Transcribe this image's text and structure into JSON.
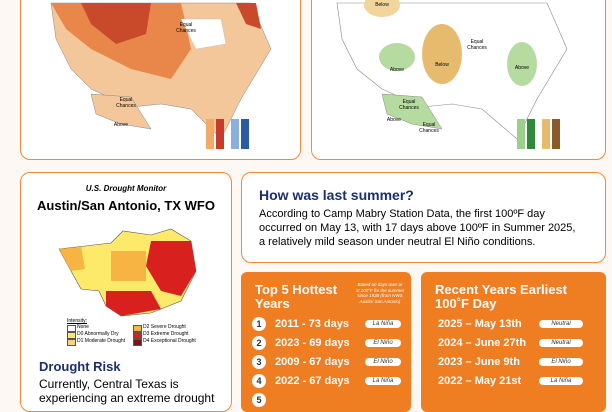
{
  "maps": [
    {
      "labels": [
        "Equal Chances",
        "Equal Chances",
        "Above"
      ]
    },
    {
      "labels": [
        "Below",
        "Equal Chances",
        "Below",
        "Above",
        "Above",
        "Equal Chances",
        "Above",
        "Equal Chances"
      ]
    }
  ],
  "drought": {
    "source": "U.S. Drought Monitor",
    "office": "Austin/San Antonio, TX WFO",
    "legend_title": "Intensity:",
    "legend": [
      "None",
      "D0 Abnormally Dry",
      "D1 Moderate Drought",
      "D2 Severe Drought",
      "D3 Extreme Drought",
      "D4 Exceptional Drought"
    ],
    "heading": "Drought Risk",
    "text": "Currently, Central Texas is experiencing an extreme drought"
  },
  "summer": {
    "title": "How was last summer?",
    "text": "According to Camp Mabry Station Data, the first 100ºF day occurred on May 13, with 17 days above 100ºF in Summer 2025, a relatively mild season under neutral El Niño conditions."
  },
  "hottest": {
    "title": "Top 5 Hottest Years",
    "note": "Based on days over or at 100°F for the summer since 1938 (from NWS Austin/ San Antonio)",
    "rows": [
      {
        "rank": "1",
        "text": "2011 - 73 days",
        "phase": "La Niña"
      },
      {
        "rank": "2",
        "text": "2023 - 69 days",
        "phase": "El Niño"
      },
      {
        "rank": "3",
        "text": "2009 - 67 days",
        "phase": "El Niño"
      },
      {
        "rank": "4",
        "text": "2022 - 67 days",
        "phase": "La Niña"
      },
      {
        "rank": "5"
      }
    ]
  },
  "earliest": {
    "title": "Recent Years Earliest 100˚F Day",
    "rows": [
      {
        "text": "2025 – May 13th",
        "phase": "Neutral"
      },
      {
        "text": "2024 – June 27th",
        "phase": "Neutral"
      },
      {
        "text": "2023 – June 9th",
        "phase": "El Niño"
      },
      {
        "text": "2022 – May 21st",
        "phase": "La Niña"
      }
    ]
  }
}
